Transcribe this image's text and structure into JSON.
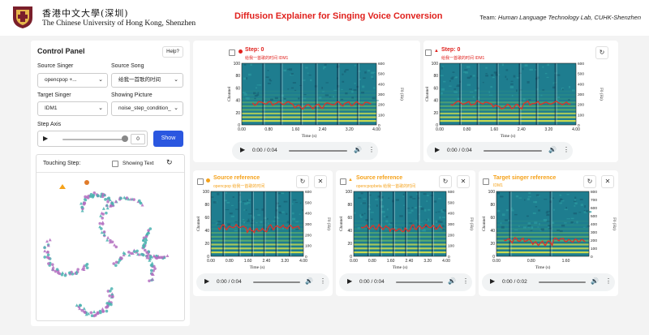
{
  "header": {
    "uni_cn": "香港中文大學(深圳)",
    "uni_en": "The Chinese University of Hong Kong, Shenzhen",
    "title": "Diffusion Explainer for Singing Voice Conversion",
    "team_label": "Team:",
    "team_name": "Human Language Technology Lab, CUHK-Shenzhen"
  },
  "control_panel": {
    "title": "Control Panel",
    "help": "Help?",
    "source_singer_label": "Source Singer",
    "source_singer_value": "opencpop +...",
    "source_song_label": "Source Song",
    "source_song_value": "给我一首歌的时间",
    "target_singer_label": "Target Singer",
    "target_singer_value": "IDM1",
    "showing_picture_label": "Showing Picture",
    "showing_picture_value": "noise_step_condition_",
    "step_axis_label": "Step Axis",
    "step_value": "0",
    "show_button": "Show",
    "touching_step_label": "Touching Step:",
    "showing_text_label": "Showing Text"
  },
  "cards": {
    "step1": {
      "title": "Step: 0",
      "sub": "给我一首歌的时间 IDM1",
      "time": "0:00 / 0:04",
      "marker_color": "#e0211d"
    },
    "step2": {
      "title": "Step: 0",
      "sub": "给我一首歌的时间 IDM1",
      "time": "0:00 / 0:04",
      "marker_color": "#e0211d"
    },
    "src1": {
      "title": "Source reference",
      "sub": "opencpop 给我一首歌的时间",
      "time": "0:00 / 0:04",
      "marker_color": "#f5a21b"
    },
    "src2": {
      "title": "Source reference",
      "sub": "opencpopbeta 给我一首歌的时间",
      "time": "0:00 / 0:04",
      "marker_color": "#f5a21b"
    },
    "target": {
      "title": "Target singer reference",
      "sub": "IDM1",
      "time": "0:00 / 0:02",
      "marker_color": "#f5a21b"
    }
  },
  "plot_labels": {
    "ylabel": "Channel",
    "y2label": "F0 (Hz)",
    "xlabel": "Time (s)",
    "yticks": [
      "0",
      "20",
      "40",
      "60",
      "80",
      "100"
    ],
    "f0_ticks_large": [
      "0",
      "100",
      "200",
      "300",
      "400",
      "500",
      "600"
    ],
    "f0_ticks_small": [
      "0",
      "100",
      "200",
      "300",
      "400",
      "500",
      "600",
      "700",
      "800"
    ],
    "xticks_4s": [
      "0.00",
      "0.80",
      "1.60",
      "2.40",
      "3.20",
      "4.00"
    ],
    "xticks_2s": [
      "0.00",
      "0.80",
      "1.60"
    ]
  },
  "colors": {
    "title_red": "#e0211d",
    "title_orange": "#f5a21b",
    "show_button": "#2b57e0",
    "scatter_teal": "#4bb3b0",
    "scatter_purple": "#b36fc0"
  }
}
